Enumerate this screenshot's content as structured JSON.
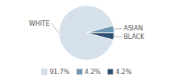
{
  "chart_data": {
    "type": "pie",
    "categories": [
      "WHITE",
      "ASIAN",
      "BLACK"
    ],
    "values": [
      91.7,
      4.2,
      4.2
    ],
    "value_labels": [
      "91.7%",
      "4.2%",
      "4.2%"
    ],
    "colors": [
      "#d6e0ea",
      "#6b96b3",
      "#2b4d6e"
    ],
    "legend": "bottom"
  }
}
